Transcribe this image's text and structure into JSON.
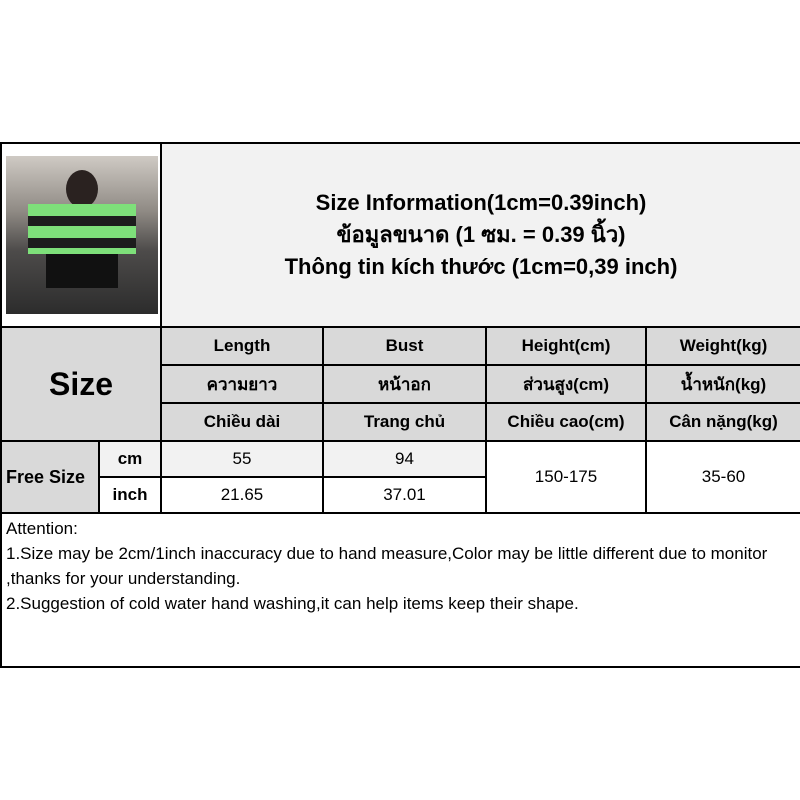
{
  "title": {
    "line1": "Size Information(1cm=0.39inch)",
    "line2": "ข้อมูลขนาด (1 ซม. = 0.39 นิ้ว)",
    "line3": "Thông tin kích thước (1cm=0,39 inch)"
  },
  "size_label": "Size",
  "columns": [
    {
      "en": "Length",
      "th": "ความยาว",
      "vi": "Chiều dài"
    },
    {
      "en": "Bust",
      "th": "หน้าอก",
      "vi": "Trang chủ"
    },
    {
      "en": "Height(cm)",
      "th": "ส่วนสูง(cm)",
      "vi": "Chiều cao(cm)"
    },
    {
      "en": "Weight(kg)",
      "th": "น้ำหนัก(kg)",
      "vi": "Cân nặng(kg)"
    }
  ],
  "row": {
    "size": "Free Size",
    "cm_label": "cm",
    "inch_label": "inch",
    "cm": [
      "55",
      "94"
    ],
    "inch": [
      "21.65",
      "37.01"
    ],
    "height": "150-175",
    "weight": "35-60"
  },
  "attention": {
    "heading": "Attention:",
    "line1": "1.Size may be 2cm/1inch inaccuracy due to hand measure,Color may be little different due to monitor ,thanks for your understanding.",
    "line2": "2.Suggestion of cold water hand washing,it can help items keep their shape."
  }
}
